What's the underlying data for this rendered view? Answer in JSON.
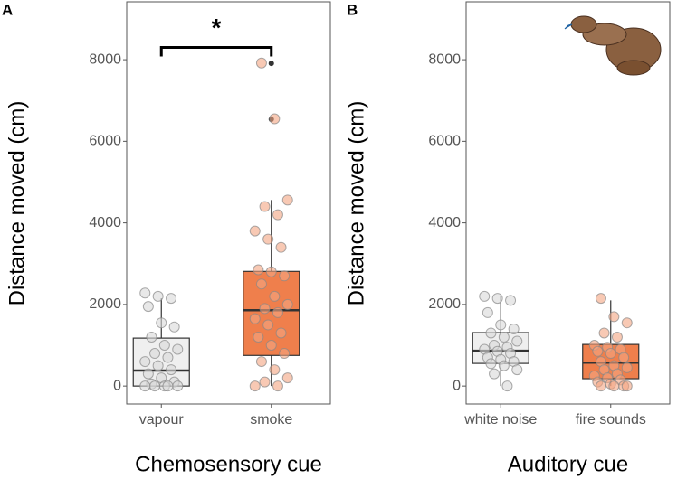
{
  "chart_data": [
    {
      "type": "box",
      "panel_label": "A",
      "xlabel": "Chemosensory cue",
      "ylabel": "Distance moved (cm)",
      "categories": [
        "vapour",
        "smoke"
      ],
      "ylim": [
        -440,
        9420
      ],
      "yticks": [
        0,
        2000,
        4000,
        6000,
        8000
      ],
      "annotation": {
        "text": "*",
        "y": 8300
      },
      "boxes": [
        {
          "color": "#efefef",
          "point_color": "#d9d9d9",
          "min": 0,
          "q1": 0,
          "median": 380,
          "q3": 1175,
          "max": 2150,
          "outliers": [],
          "points": [
            2280,
            2200,
            2150,
            1950,
            1550,
            1450,
            1200,
            1000,
            900,
            800,
            700,
            600,
            500,
            400,
            300,
            200,
            100,
            50,
            0,
            0,
            0,
            0,
            0
          ]
        },
        {
          "color": "#ef7f4c",
          "point_color": "#f4a582",
          "min": 0,
          "q1": 750,
          "median": 1860,
          "q3": 2810,
          "max": 4560,
          "outliers": [
            6540,
            7910
          ],
          "points": [
            7920,
            6550,
            4560,
            4400,
            4200,
            3800,
            3600,
            3400,
            2850,
            2800,
            2700,
            2500,
            2200,
            2000,
            1900,
            1800,
            1650,
            1500,
            1300,
            1200,
            1000,
            800,
            600,
            400,
            200,
            100,
            0,
            0
          ]
        }
      ]
    },
    {
      "type": "box",
      "panel_label": "B",
      "xlabel": "Auditory cue",
      "ylabel": "Distance moved (cm)",
      "categories": [
        "white noise",
        "fire sounds"
      ],
      "ylim": [
        -440,
        9420
      ],
      "yticks": [
        0,
        2000,
        4000,
        6000,
        8000
      ],
      "boxes": [
        {
          "color": "#efefef",
          "point_color": "#d9d9d9",
          "min": 0,
          "q1": 555,
          "median": 865,
          "q3": 1310,
          "max": 2215,
          "outliers": [],
          "points": [
            2200,
            2150,
            2100,
            1800,
            1500,
            1400,
            1300,
            1200,
            1100,
            1000,
            950,
            900,
            850,
            800,
            700,
            650,
            600,
            550,
            500,
            400,
            300,
            0
          ]
        },
        {
          "color": "#ef7f4c",
          "point_color": "#f4a582",
          "min": 0,
          "q1": 180,
          "median": 575,
          "q3": 1020,
          "max": 2100,
          "outliers": [],
          "points": [
            2150,
            1700,
            1550,
            1300,
            1200,
            1000,
            950,
            900,
            850,
            800,
            700,
            600,
            500,
            450,
            400,
            300,
            250,
            200,
            150,
            100,
            50,
            0,
            0,
            0,
            0
          ]
        }
      ]
    }
  ]
}
